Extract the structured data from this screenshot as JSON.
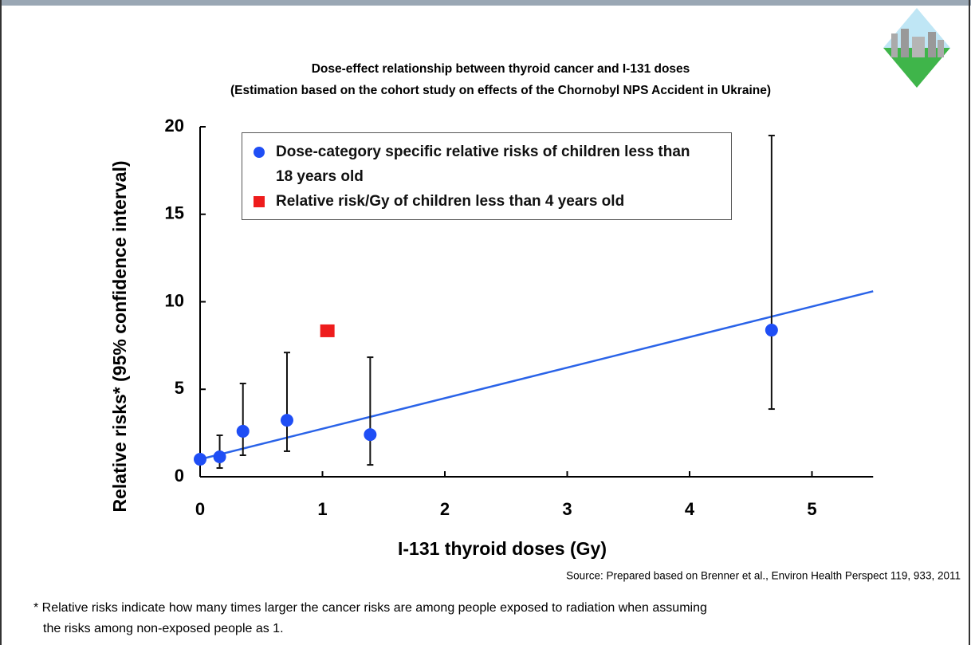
{
  "chart_data": {
    "type": "scatter",
    "title": [
      "Dose-effect relationship between thyroid cancer and I-131 doses",
      "(Estimation based on the cohort study on effects of the Chornobyl NPS Accident in Ukraine)"
    ],
    "x_label": "I-131 thyroid doses (Gy)",
    "y_label": "Relative risks* (95% confidence interval)",
    "xlim": [
      0,
      5.5
    ],
    "xticks": [
      0,
      1,
      2,
      3,
      4,
      5
    ],
    "ylim": [
      0,
      20
    ],
    "yticks": [
      0,
      5,
      10,
      15,
      20
    ],
    "series": [
      {
        "name": "Dose-category specific relative risks of children less than 18 years old",
        "color": "#1f4ef5",
        "marker": "circle",
        "x": [
          0,
          0.16,
          0.35,
          0.71,
          1.39,
          4.67
        ],
        "values": [
          1.0,
          1.14,
          2.6,
          3.23,
          2.41,
          8.38
        ],
        "ci_low": [
          null,
          0.5,
          1.23,
          1.46,
          0.68,
          3.87
        ],
        "ci_high": [
          null,
          2.37,
          5.33,
          7.1,
          6.83,
          19.5
        ]
      },
      {
        "name": "Relative risk/Gy of children less than 4 years old",
        "color": "#ee1c1c",
        "marker": "square",
        "x": [
          1.04
        ],
        "values": [
          8.34
        ]
      }
    ],
    "fit_line": {
      "color": "#2a63e8",
      "x": [
        0,
        5.5
      ],
      "values": [
        1.0,
        10.6
      ]
    },
    "source": "Source: Prepared based on Brenner et al., Environ Health Perspect 119, 933, 2011",
    "footnote": [
      "* Relative risks indicate how many times larger the cancer risks are among people exposed to radiation when assuming",
      "the risks among non-exposed people as 1."
    ]
  }
}
